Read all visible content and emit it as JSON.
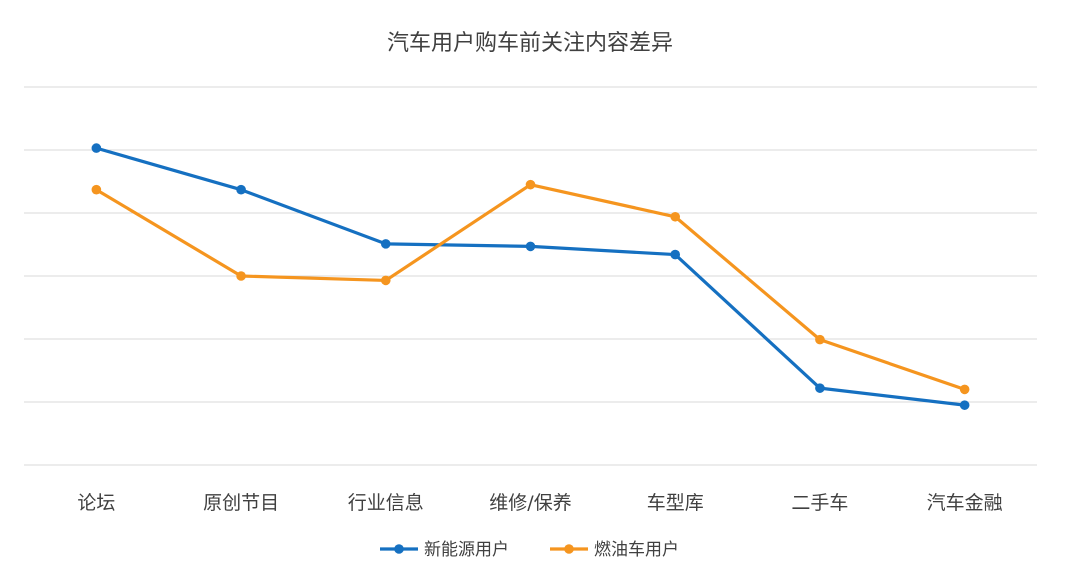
{
  "chart_data": {
    "type": "line",
    "title": "汽车用户购车前关注内容差异",
    "xlabel": "",
    "ylabel": "",
    "categories": [
      "论坛",
      "原创节目",
      "行业信息",
      "维修/保养",
      "车型库",
      "二手车",
      "汽车金融"
    ],
    "ylim": [
      0,
      6
    ],
    "grid": true,
    "y_tick_labels_visible": false,
    "legend_position": "bottom",
    "series": [
      {
        "name": "新能源用户",
        "color": "#1570c1",
        "values": [
          5.03,
          4.37,
          3.51,
          3.47,
          3.34,
          1.22,
          0.95
        ]
      },
      {
        "name": "燃油车用户",
        "color": "#f5951f",
        "values": [
          4.37,
          3.0,
          2.93,
          4.45,
          3.94,
          1.99,
          1.2
        ]
      }
    ]
  }
}
